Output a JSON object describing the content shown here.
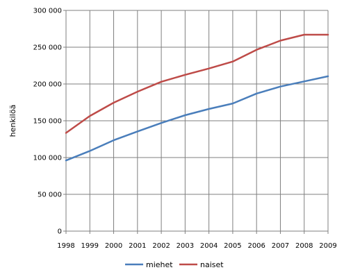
{
  "chart_data": {
    "type": "line",
    "x": [
      1998,
      1999,
      2000,
      2001,
      2002,
      2003,
      2004,
      2005,
      2006,
      2007,
      2008,
      2009
    ],
    "x_tick_labels": [
      "1998",
      "1999",
      "2000",
      "2001",
      "2002",
      "2003",
      "2004",
      "2005",
      "2006",
      "2007",
      "2008",
      "2009"
    ],
    "ylabel": "henkilöä",
    "ylim": [
      0,
      300000
    ],
    "y_ticks": [
      0,
      50000,
      100000,
      150000,
      200000,
      250000,
      300000
    ],
    "y_tick_labels": [
      "0",
      "50 000",
      "100 000",
      "150 000",
      "200 000",
      "250 000",
      "300 000"
    ],
    "grid": true,
    "legend_placement": "bottom",
    "series": [
      {
        "name": "miehet",
        "color": "#4a7ebb",
        "values": [
          96000,
          109000,
          123500,
          135500,
          147000,
          157500,
          166000,
          173500,
          187000,
          196500,
          203500,
          210500
        ]
      },
      {
        "name": "naiset",
        "color": "#be4b48",
        "values": [
          133500,
          156500,
          174500,
          189500,
          203000,
          212500,
          221000,
          230500,
          246500,
          259000,
          267000,
          267000
        ]
      }
    ]
  }
}
